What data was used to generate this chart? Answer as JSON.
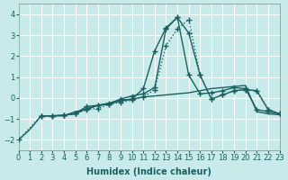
{
  "xlabel": "Humidex (Indice chaleur)",
  "background_color": "#c8eaea",
  "line_color": "#1a6060",
  "xlim": [
    0,
    23
  ],
  "ylim": [
    -2.5,
    4.5
  ],
  "yticks": [
    -2,
    -1,
    0,
    1,
    2,
    3,
    4
  ],
  "xticks": [
    0,
    1,
    2,
    3,
    4,
    5,
    6,
    7,
    8,
    9,
    10,
    11,
    12,
    13,
    14,
    15,
    16,
    17,
    18,
    19,
    20,
    21,
    22,
    23
  ],
  "line1_x": [
    0,
    1,
    2,
    3,
    4,
    5,
    6,
    7,
    8,
    9,
    10,
    11,
    12,
    13,
    14,
    15,
    16,
    17,
    18,
    19,
    20,
    21,
    22,
    23
  ],
  "line1_y": [
    -2.0,
    -1.5,
    -0.85,
    -0.85,
    -0.85,
    -0.65,
    -0.55,
    -0.35,
    -0.25,
    -0.15,
    -0.05,
    0.05,
    0.1,
    0.15,
    0.2,
    0.25,
    0.35,
    0.45,
    0.5,
    0.55,
    0.6,
    -0.65,
    -0.75,
    -0.8
  ],
  "line2_x": [
    0,
    2,
    3,
    4,
    5,
    6,
    7,
    8,
    9,
    10,
    11,
    12,
    13,
    14,
    15,
    16,
    17,
    18,
    19,
    20,
    21,
    22,
    23
  ],
  "line2_y": [
    -2.0,
    -0.85,
    -0.85,
    -0.82,
    -0.75,
    -0.55,
    -0.5,
    -0.3,
    -0.2,
    -0.1,
    0.05,
    0.4,
    2.5,
    3.3,
    3.75,
    1.1,
    -0.05,
    0.15,
    0.35,
    0.4,
    0.35,
    -0.55,
    -0.75
  ],
  "line3_x": [
    2,
    3,
    4,
    5,
    6,
    7,
    8,
    9,
    10,
    11,
    12,
    13,
    14,
    15,
    16,
    17,
    18,
    19,
    20,
    21,
    22,
    23
  ],
  "line3_y": [
    -0.85,
    -0.85,
    -0.82,
    -0.75,
    -0.4,
    -0.35,
    -0.25,
    -0.05,
    0.1,
    0.2,
    0.5,
    3.3,
    3.85,
    3.1,
    1.1,
    -0.05,
    0.15,
    0.35,
    0.4,
    0.35,
    -0.55,
    -0.75
  ],
  "line4_x": [
    2,
    3,
    4,
    5,
    6,
    7,
    8,
    9,
    10,
    11,
    12,
    13,
    14,
    15,
    16,
    17,
    18,
    19,
    20,
    21,
    22,
    23
  ],
  "line4_y": [
    -0.85,
    -0.85,
    -0.82,
    -0.75,
    -0.5,
    -0.35,
    -0.3,
    -0.1,
    -0.05,
    0.45,
    2.25,
    3.35,
    3.85,
    1.1,
    0.2,
    0.25,
    0.35,
    0.5,
    0.45,
    -0.55,
    -0.65,
    -0.75
  ]
}
